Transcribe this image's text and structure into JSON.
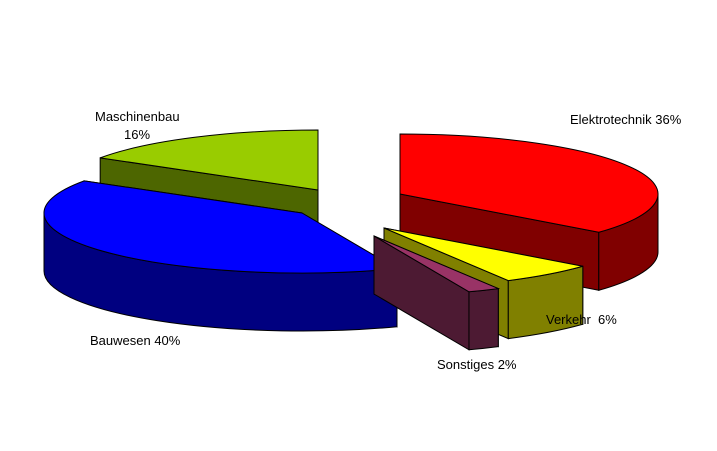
{
  "chart_data": {
    "type": "pie",
    "style": "3d-exploded",
    "slices": [
      {
        "name": "Elektrotechnik",
        "value": 36,
        "label": "Elektrotechnik 36%",
        "color": "#FF0000",
        "side_color": "#800000"
      },
      {
        "name": "Verkehr",
        "value": 6,
        "label": "Verkehr  6%",
        "color": "#FFFF00",
        "side_color": "#808000"
      },
      {
        "name": "Sonstiges",
        "value": 2,
        "label": "Sonstiges 2%",
        "color": "#993366",
        "side_color": "#4D1A33"
      },
      {
        "name": "Bauwesen",
        "value": 40,
        "label": "Bauwesen 40%",
        "color": "#0000FF",
        "side_color": "#000080"
      },
      {
        "name": "Maschinenbau",
        "value": 16,
        "label_line1": "Maschinenbau",
        "label_line2": "16%",
        "color": "#99CC00",
        "side_color": "#4D6600"
      }
    ],
    "legend": "none"
  }
}
